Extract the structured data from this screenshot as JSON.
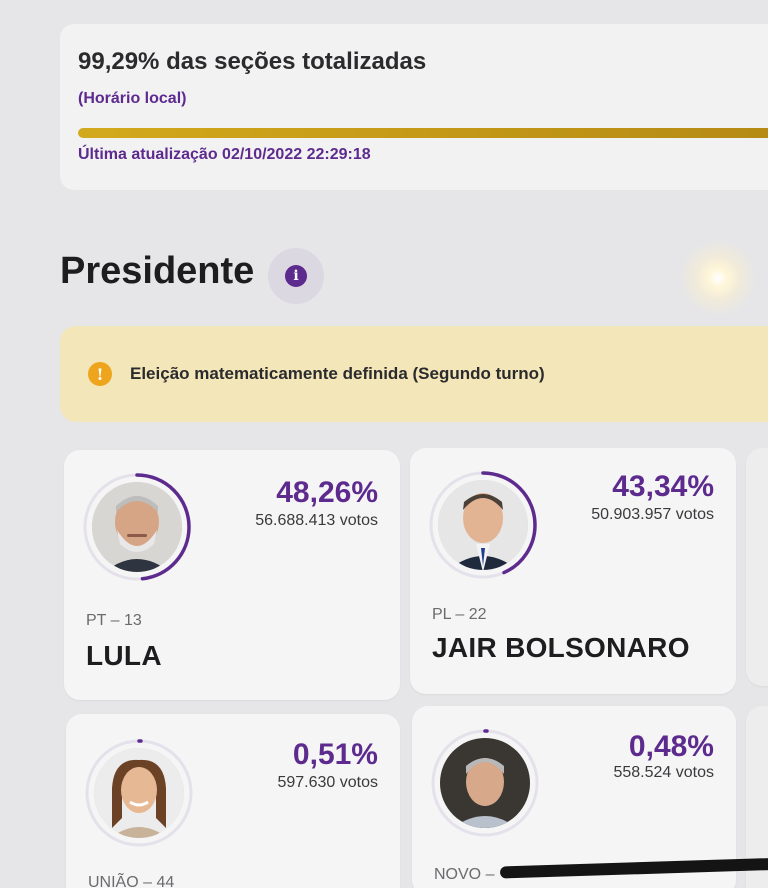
{
  "status": {
    "title": "99,29% das seções totalizadas",
    "subtitle": "(Horário local)",
    "progress_percent": 99.29,
    "updated": "Última atualização 02/10/2022 22:29:18"
  },
  "section": {
    "title": "Presidente",
    "info_icon": "info-icon"
  },
  "alert": {
    "icon": "info-icon",
    "text": "Eleição matematicamente definida (Segundo turno)"
  },
  "candidates": [
    {
      "percent": "48,26%",
      "votes": "56.688.413 votos",
      "party": "PT – 13",
      "name": "LULA",
      "share": 48.26
    },
    {
      "percent": "43,34%",
      "votes": "50.903.957 votos",
      "party": "PL – 22",
      "name": "JAIR BOLSONARO",
      "share": 43.34
    },
    {
      "percent": "0,51%",
      "votes": "597.630 votos",
      "party": "UNIÃO – 44",
      "name": "",
      "share": 0.51
    },
    {
      "percent": "0,48%",
      "votes": "558.524 votos",
      "party": "NOVO –",
      "name": "",
      "share": 0.48
    }
  ],
  "colors": {
    "accent": "#5d2a8e",
    "progress": "#c99b17",
    "alert_bg": "#f3e6b8",
    "alert_icon": "#eea51d"
  }
}
